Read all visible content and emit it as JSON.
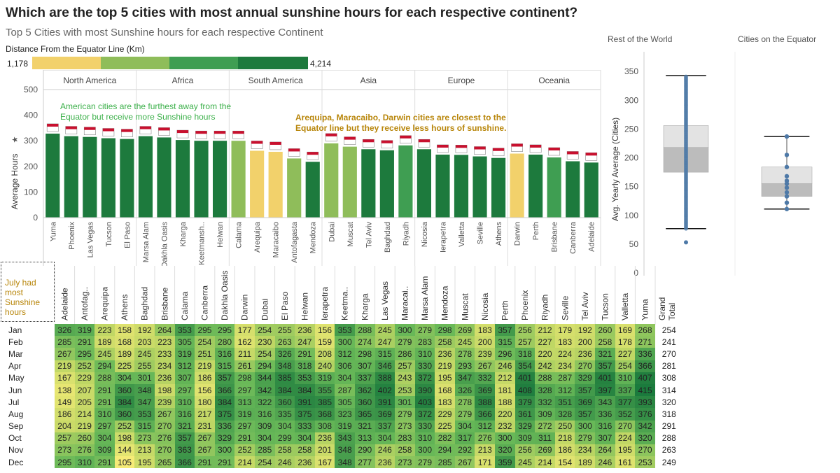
{
  "title": "Which are the top 5 cities with most annual sunshine hours for each respective continent?",
  "subtitle": "Top 5 Cities with most Sunshine hours for each respective Continent",
  "legend": {
    "title": "Distance From the Equator Line (Km)",
    "min_label": "1,178",
    "max_label": "4,214",
    "colors": [
      "#f2d16b",
      "#8fbd5a",
      "#3f9e52",
      "#1d7a3d"
    ]
  },
  "colors": {
    "far_green": "#1d7a3d",
    "mid_green": "#3f9e52",
    "light_green": "#8fbd5a",
    "yellow": "#f2d16b",
    "annot_green": "#3cb04a",
    "annot_gold": "#b8860b"
  },
  "annotations": {
    "american": "American cities are the furthest away from the Equator but receive more Sunshine hours",
    "closest": "Arequipa, Maracaibo, Darwin cities are closest to the Equator line but they receive less hours of sunshine.",
    "july": "July had most Sunshine hours"
  },
  "chart_data": [
    {
      "type": "bar",
      "ylabel": "Average Hours",
      "ylim": [
        0,
        500
      ],
      "yticks": [
        0,
        100,
        200,
        300,
        400,
        500
      ],
      "grid": false,
      "groups": [
        {
          "name": "North America",
          "cities": [
            "Yuma",
            "Phoenix",
            "Las Vegas",
            "Tucson",
            "El Paso"
          ],
          "values": [
            328,
            318,
            315,
            310,
            307
          ],
          "colors": [
            "far_green",
            "far_green",
            "far_green",
            "far_green",
            "far_green"
          ]
        },
        {
          "name": "Africa",
          "cities": [
            "Marsa Alam",
            "Dakhla Oasis",
            "Kharga",
            "Keetmansh..",
            "Helwan"
          ],
          "values": [
            318,
            313,
            303,
            300,
            300
          ],
          "colors": [
            "far_green",
            "far_green",
            "far_green",
            "far_green",
            "far_green"
          ]
        },
        {
          "name": "South America",
          "cities": [
            "Calama",
            "Arequipa",
            "Maracaibo",
            "Antofagasta",
            "Mendoza"
          ],
          "values": [
            300,
            261,
            257,
            231,
            218
          ],
          "colors": [
            "light_green",
            "yellow",
            "yellow",
            "light_green",
            "far_green"
          ]
        },
        {
          "name": "Asia",
          "cities": [
            "Dubai",
            "Muscat",
            "Tel Aviv",
            "Baghdad",
            "Riyadh"
          ],
          "values": [
            290,
            277,
            267,
            263,
            282
          ],
          "colors": [
            "light_green",
            "light_green",
            "far_green",
            "far_green",
            "mid_green"
          ]
        },
        {
          "name": "Europe",
          "cities": [
            "Nicosia",
            "Ierapetra",
            "Valletta",
            "Seville",
            "Athens"
          ],
          "values": [
            267,
            246,
            245,
            239,
            233
          ],
          "colors": [
            "far_green",
            "far_green",
            "far_green",
            "far_green",
            "far_green"
          ]
        },
        {
          "name": "Oceania",
          "cities": [
            "Darwin",
            "Perth",
            "Brisbane",
            "Canberra",
            "Adelaide"
          ],
          "values": [
            250,
            246,
            235,
            220,
            215
          ],
          "colors": [
            "yellow",
            "far_green",
            "mid_green",
            "far_green",
            "far_green"
          ]
        }
      ]
    },
    {
      "type": "box",
      "title": "Rest of the World",
      "ylabel": "Avg. Yearly Average (Cities)",
      "ylim": [
        0,
        360
      ],
      "yticks": [
        0,
        50,
        100,
        150,
        200,
        250,
        300,
        350
      ],
      "whisker_low": 77,
      "q1": 175,
      "median": 218,
      "q3": 256,
      "whisker_high": 343,
      "outliers": [
        53
      ]
    },
    {
      "type": "box",
      "title": "Cities on the Equator",
      "whisker_low": 111,
      "q1": 133,
      "median": 155,
      "q3": 184,
      "whisker_high": 237,
      "points": [
        111,
        122,
        133,
        140,
        148,
        155,
        160,
        168,
        184,
        205,
        237
      ]
    },
    {
      "type": "heatmap",
      "cities": [
        "Adelaide",
        "Antofag..",
        "Arequipa",
        "Athens",
        "Baghdad",
        "Brisbane",
        "Calama",
        "Canberra",
        "Dakhla Oasis",
        "Darwin",
        "Dubai",
        "El Paso",
        "Helwan",
        "Ierapetra",
        "Keetma..",
        "Kharga",
        "Las Vegas",
        "Maracai..",
        "Marsa Alam",
        "Mendoza",
        "Muscat",
        "Nicosia",
        "Perth",
        "Phoenix",
        "Riyadh",
        "Seville",
        "Tel Aviv",
        "Tucson",
        "Valletta",
        "Yuma"
      ],
      "total_label": "Grand Total",
      "months": [
        "Jan",
        "Feb",
        "Mar",
        "Apr",
        "May",
        "Jun",
        "Jul",
        "Aug",
        "Sep",
        "Oct",
        "Nov",
        "Dec"
      ],
      "values": [
        [
          326,
          319,
          223,
          158,
          192,
          264,
          353,
          295,
          295,
          177,
          254,
          255,
          236,
          156,
          353,
          288,
          245,
          300,
          279,
          298,
          269,
          183,
          357,
          256,
          212,
          179,
          192,
          260,
          169,
          268
        ],
        [
          285,
          291,
          189,
          168,
          203,
          223,
          305,
          254,
          280,
          162,
          230,
          263,
          247,
          159,
          300,
          274,
          247,
          279,
          283,
          258,
          245,
          200,
          315,
          257,
          227,
          183,
          200,
          258,
          178,
          271
        ],
        [
          267,
          295,
          245,
          189,
          245,
          233,
          319,
          251,
          316,
          211,
          254,
          326,
          291,
          208,
          312,
          298,
          315,
          286,
          310,
          236,
          278,
          239,
          296,
          318,
          220,
          224,
          236,
          321,
          227,
          336
        ],
        [
          219,
          252,
          294,
          225,
          255,
          234,
          312,
          219,
          315,
          261,
          294,
          348,
          318,
          240,
          306,
          307,
          346,
          257,
          330,
          219,
          293,
          267,
          246,
          354,
          242,
          234,
          270,
          357,
          254,
          366
        ],
        [
          167,
          229,
          288,
          304,
          301,
          236,
          307,
          186,
          357,
          298,
          344,
          385,
          353,
          319,
          304,
          337,
          388,
          243,
          372,
          195,
          347,
          332,
          212,
          401,
          288,
          287,
          329,
          401,
          310,
          407
        ],
        [
          138,
          207,
          291,
          360,
          348,
          198,
          297,
          156,
          366,
          297,
          342,
          384,
          384,
          355,
          287,
          362,
          402,
          253,
          390,
          168,
          326,
          369,
          181,
          408,
          328,
          312,
          357,
          397,
          337,
          415
        ],
        [
          149,
          205,
          291,
          384,
          347,
          239,
          310,
          180,
          384,
          313,
          322,
          360,
          391,
          385,
          305,
          360,
          391,
          301,
          403,
          183,
          278,
          388,
          188,
          379,
          332,
          351,
          369,
          343,
          377,
          393
        ],
        [
          186,
          214,
          310,
          360,
          353,
          267,
          316,
          217,
          375,
          319,
          316,
          335,
          375,
          368,
          323,
          365,
          369,
          279,
          372,
          229,
          279,
          366,
          220,
          361,
          309,
          328,
          357,
          336,
          352,
          376
        ],
        [
          204,
          219,
          297,
          252,
          315,
          270,
          321,
          231,
          336,
          297,
          309,
          304,
          333,
          308,
          319,
          321,
          337,
          273,
          330,
          225,
          304,
          312,
          232,
          329,
          272,
          250,
          300,
          316,
          270,
          342
        ],
        [
          257,
          260,
          304,
          198,
          273,
          276,
          357,
          267,
          329,
          291,
          304,
          299,
          304,
          236,
          343,
          313,
          304,
          283,
          310,
          282,
          317,
          276,
          300,
          309,
          311,
          218,
          279,
          307,
          224,
          320
        ],
        [
          273,
          276,
          309,
          144,
          213,
          270,
          363,
          267,
          300,
          252,
          285,
          258,
          258,
          201,
          348,
          290,
          246,
          258,
          300,
          294,
          292,
          213,
          320,
          256,
          269,
          186,
          234,
          264,
          195,
          270
        ],
        [
          295,
          310,
          291,
          105,
          195,
          265,
          366,
          291,
          291,
          214,
          254,
          246,
          236,
          167,
          348,
          277,
          236,
          273,
          279,
          285,
          267,
          171,
          359,
          245,
          214,
          154,
          189,
          246,
          161,
          253
        ]
      ],
      "totals": [
        254,
        241,
        270,
        281,
        308,
        314,
        320,
        318,
        291,
        288,
        263,
        249
      ]
    }
  ]
}
